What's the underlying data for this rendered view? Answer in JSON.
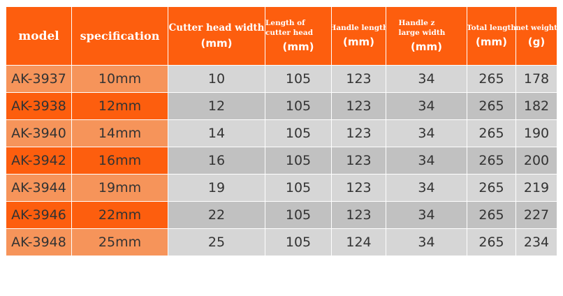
{
  "colors": {
    "header_bg": "#fd5e0e",
    "row_label_dark": "#fd5e0e",
    "row_label_light": "#f6945a",
    "cell_light": "#d6d6d6",
    "cell_dark": "#c1c1c1"
  },
  "header": {
    "model": "model",
    "specification": "specification",
    "cutter_head_width": {
      "title": "Cutter head width",
      "unit": "(mm)"
    },
    "cutter_head_length": {
      "title": "Length of cutter head",
      "unit": "(mm)"
    },
    "handle_length": {
      "title": "Handle length",
      "unit": "(mm)"
    },
    "handle_large_width": {
      "title": "Handle z large width",
      "unit": "(mm)"
    },
    "total_length": {
      "title": "Total length",
      "unit": "(mm)"
    },
    "net_weight": {
      "title": "net weight",
      "unit": "(g)"
    }
  },
  "rows": [
    {
      "model": "AK-3937",
      "spec": "10mm",
      "head_width": "10",
      "head_length": "105",
      "handle_length": "123",
      "handle_width": "34",
      "total_length": "265",
      "weight": "178"
    },
    {
      "model": "AK-3938",
      "spec": "12mm",
      "head_width": "12",
      "head_length": "105",
      "handle_length": "123",
      "handle_width": "34",
      "total_length": "265",
      "weight": "182"
    },
    {
      "model": "AK-3940",
      "spec": "14mm",
      "head_width": "14",
      "head_length": "105",
      "handle_length": "123",
      "handle_width": "34",
      "total_length": "265",
      "weight": "190"
    },
    {
      "model": "AK-3942",
      "spec": "16mm",
      "head_width": "16",
      "head_length": "105",
      "handle_length": "123",
      "handle_width": "34",
      "total_length": "265",
      "weight": "200"
    },
    {
      "model": "AK-3944",
      "spec": "19mm",
      "head_width": "19",
      "head_length": "105",
      "handle_length": "123",
      "handle_width": "34",
      "total_length": "265",
      "weight": "219"
    },
    {
      "model": "AK-3946",
      "spec": "22mm",
      "head_width": "22",
      "head_length": "105",
      "handle_length": "123",
      "handle_width": "34",
      "total_length": "265",
      "weight": "227"
    },
    {
      "model": "AK-3948",
      "spec": "25mm",
      "head_width": "25",
      "head_length": "105",
      "handle_length": "124",
      "handle_width": "34",
      "total_length": "265",
      "weight": "234"
    }
  ]
}
